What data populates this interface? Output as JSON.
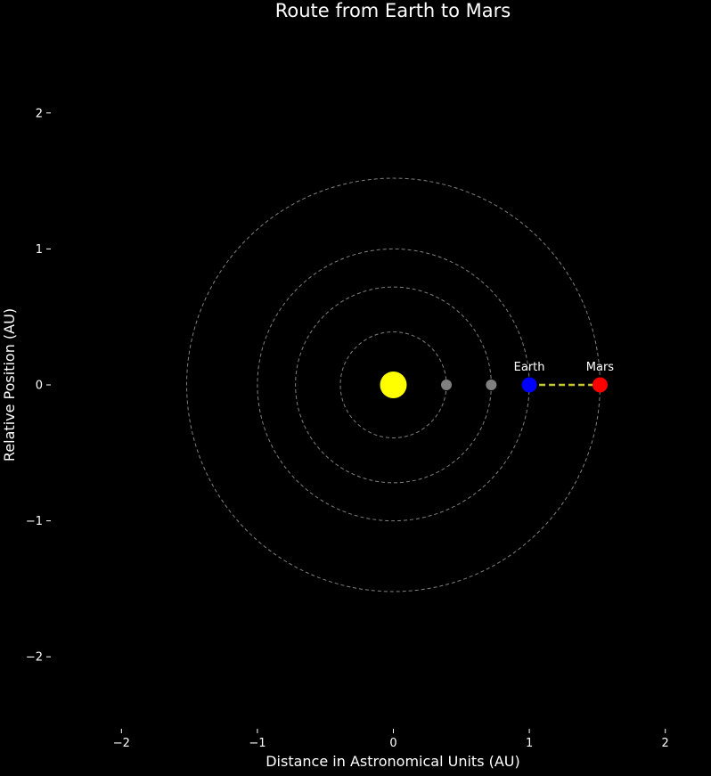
{
  "chart_data": {
    "type": "scatter",
    "title": "Route from Earth to Mars",
    "xlabel": "Distance in Astronomical Units (AU)",
    "ylabel": "Relative Position (AU)",
    "xlim": [
      -2.5,
      2.5
    ],
    "ylim": [
      -2.5,
      2.5
    ],
    "xticks": [
      -2,
      -1,
      0,
      1,
      2
    ],
    "yticks": [
      -2,
      -1,
      0,
      1,
      2
    ],
    "tick_labels": [
      "−2",
      "−1",
      "0",
      "1",
      "2"
    ],
    "grid": false,
    "background_color": "#000000",
    "orbits": [
      {
        "radius": 0.39
      },
      {
        "radius": 0.72
      },
      {
        "radius": 1.0
      },
      {
        "radius": 1.52
      }
    ],
    "orbit_color": "#808080",
    "bodies": [
      {
        "name": "sun",
        "label": "",
        "x": 0,
        "y": 0,
        "color": "#ffff00",
        "size": "large"
      },
      {
        "name": "mercury",
        "label": "",
        "x": 0.39,
        "y": 0,
        "color": "#808080",
        "size": "small"
      },
      {
        "name": "venus",
        "label": "",
        "x": 0.72,
        "y": 0,
        "color": "#808080",
        "size": "small"
      },
      {
        "name": "earth",
        "label": "Earth",
        "x": 1.0,
        "y": 0,
        "color": "#0000ff",
        "size": "medium"
      },
      {
        "name": "mars",
        "label": "Mars",
        "x": 1.52,
        "y": 0,
        "color": "#ff0000",
        "size": "medium"
      }
    ],
    "route": {
      "from": [
        1.0,
        0
      ],
      "to": [
        1.52,
        0
      ],
      "color": "#c8c832",
      "style": "dashed"
    }
  }
}
